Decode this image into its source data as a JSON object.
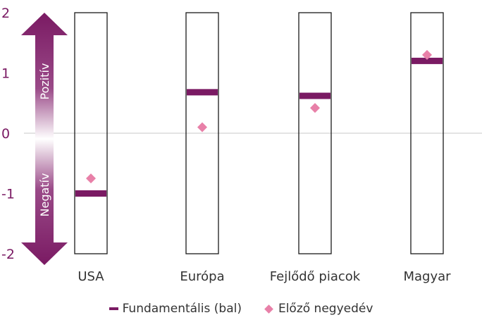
{
  "chart_data": {
    "type": "scatter",
    "categories": [
      "USA",
      "Európa",
      "Fejlődő piacok",
      "Magyar"
    ],
    "series": [
      {
        "name": "Fundamentális (bal)",
        "marker": "bar",
        "color": "#7a1a63",
        "values": [
          -1.0,
          0.68,
          0.62,
          1.2
        ]
      },
      {
        "name": "Előző negyedév",
        "marker": "diamond",
        "color": "#e880a8",
        "values": [
          -0.75,
          0.1,
          0.42,
          1.3
        ]
      }
    ],
    "ylim": [
      -2,
      2
    ],
    "yticks": [
      "2",
      "1",
      "0",
      "-1",
      "-2"
    ],
    "arrow": {
      "positive_label": "Pozitív",
      "negative_label": "Negatív",
      "color": "#7a1a63"
    },
    "legend": "bottom-center",
    "grid": false
  }
}
